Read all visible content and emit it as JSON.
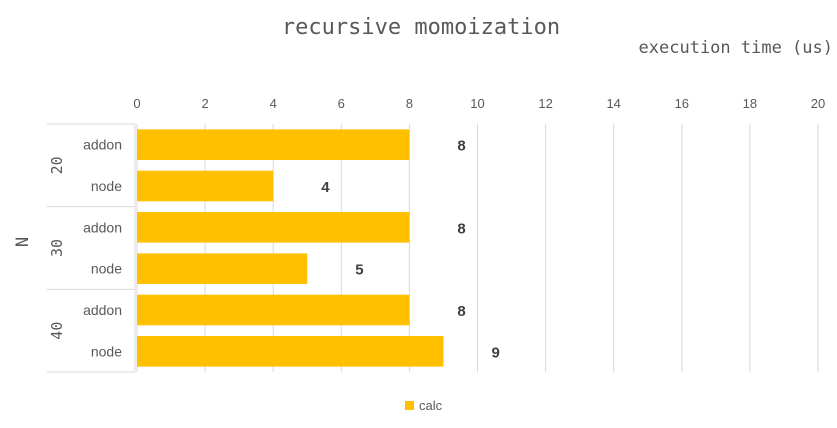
{
  "chart_data": {
    "type": "bar",
    "orientation": "horizontal",
    "title": "recursive momoization",
    "xlabel": "execution time (us)",
    "ylabel": "N",
    "xlim": [
      0,
      20
    ],
    "xticks": [
      0,
      2,
      4,
      6,
      8,
      10,
      12,
      14,
      16,
      18,
      20
    ],
    "grid": true,
    "legend_position": "bottom",
    "groups": [
      {
        "label": "20",
        "categories": [
          {
            "label": "addon",
            "value": 8
          },
          {
            "label": "node",
            "value": 4
          }
        ]
      },
      {
        "label": "30",
        "categories": [
          {
            "label": "addon",
            "value": 8
          },
          {
            "label": "node",
            "value": 5
          }
        ]
      },
      {
        "label": "40",
        "categories": [
          {
            "label": "addon",
            "value": 8
          },
          {
            "label": "node",
            "value": 9
          }
        ]
      }
    ],
    "series": [
      {
        "name": "calc",
        "color": "#FFC000"
      }
    ]
  }
}
